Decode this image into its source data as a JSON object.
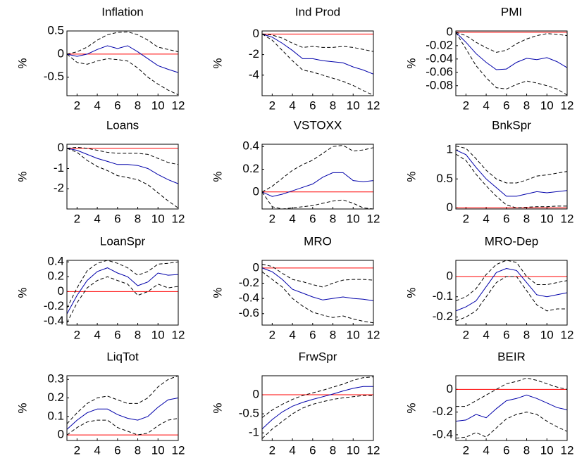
{
  "chart_data": [
    {
      "type": "line",
      "title": "Inflation",
      "ylabel": "%",
      "x": [
        1,
        2,
        3,
        4,
        5,
        6,
        7,
        8,
        9,
        10,
        11,
        12
      ],
      "xlim": [
        1,
        12
      ],
      "xticks": [
        2,
        4,
        6,
        8,
        10,
        12
      ],
      "ylim": [
        -0.9,
        0.5
      ],
      "yticks": [
        -0.5,
        0,
        0.5
      ],
      "hline": {
        "value": 0,
        "color": "#ff0000"
      },
      "series": [
        {
          "color": "#0000aa",
          "dashed": false,
          "values": [
            0,
            -0.05,
            0,
            0.1,
            0.18,
            0.12,
            0.18,
            0.05,
            -0.1,
            -0.25,
            -0.33,
            -0.4
          ]
        },
        {
          "color": "#000000",
          "dashed": true,
          "values": [
            0,
            0.05,
            0.15,
            0.3,
            0.42,
            0.47,
            0.48,
            0.42,
            0.3,
            0.15,
            0.1,
            0.05
          ]
        },
        {
          "color": "#000000",
          "dashed": true,
          "values": [
            0,
            -0.18,
            -0.22,
            -0.15,
            -0.1,
            -0.12,
            -0.15,
            -0.3,
            -0.5,
            -0.65,
            -0.78,
            -0.88
          ]
        }
      ]
    },
    {
      "type": "line",
      "title": "Ind Prod",
      "ylabel": "%",
      "x": [
        1,
        2,
        3,
        4,
        5,
        6,
        7,
        8,
        9,
        10,
        11,
        12
      ],
      "xlim": [
        1,
        12
      ],
      "xticks": [
        2,
        4,
        6,
        8,
        10,
        12
      ],
      "ylim": [
        -6,
        0.3
      ],
      "yticks": [
        -4,
        -2,
        0
      ],
      "hline": {
        "value": 0,
        "color": "#ff0000"
      },
      "series": [
        {
          "color": "#0000aa",
          "dashed": false,
          "values": [
            0,
            -0.3,
            -0.9,
            -1.6,
            -2.4,
            -2.4,
            -2.6,
            -2.7,
            -2.8,
            -3.2,
            -3.5,
            -3.9
          ]
        },
        {
          "color": "#000000",
          "dashed": true,
          "values": [
            0,
            -0.1,
            -0.4,
            -0.9,
            -1.3,
            -1.2,
            -1.3,
            -1.3,
            -1.2,
            -1.3,
            -1.5,
            -1.7
          ]
        },
        {
          "color": "#000000",
          "dashed": true,
          "values": [
            0,
            -0.6,
            -1.6,
            -2.6,
            -3.5,
            -3.7,
            -4.0,
            -4.3,
            -4.6,
            -5.0,
            -5.5,
            -5.95
          ]
        }
      ]
    },
    {
      "type": "line",
      "title": "PMI",
      "ylabel": "%",
      "x": [
        1,
        2,
        3,
        4,
        5,
        6,
        7,
        8,
        9,
        10,
        11,
        12
      ],
      "xlim": [
        1,
        12
      ],
      "xticks": [
        2,
        4,
        6,
        8,
        10,
        12
      ],
      "ylim": [
        -0.095,
        0.002
      ],
      "yticks": [
        -0.08,
        -0.06,
        -0.04,
        -0.02,
        0
      ],
      "hline": {
        "value": 0,
        "color": "#ff0000"
      },
      "series": [
        {
          "color": "#0000aa",
          "dashed": false,
          "values": [
            0,
            -0.015,
            -0.032,
            -0.045,
            -0.056,
            -0.055,
            -0.045,
            -0.039,
            -0.041,
            -0.038,
            -0.044,
            -0.053
          ]
        },
        {
          "color": "#000000",
          "dashed": true,
          "values": [
            0,
            -0.005,
            -0.015,
            -0.023,
            -0.03,
            -0.027,
            -0.017,
            -0.01,
            -0.005,
            -0.002,
            -0.003,
            -0.005
          ]
        },
        {
          "color": "#000000",
          "dashed": true,
          "values": [
            0,
            -0.025,
            -0.05,
            -0.068,
            -0.083,
            -0.085,
            -0.078,
            -0.073,
            -0.076,
            -0.08,
            -0.085,
            -0.094
          ]
        }
      ]
    },
    {
      "type": "line",
      "title": "Loans",
      "ylabel": "%",
      "x": [
        1,
        2,
        3,
        4,
        5,
        6,
        7,
        8,
        9,
        10,
        11,
        12
      ],
      "xlim": [
        1,
        12
      ],
      "xticks": [
        2,
        4,
        6,
        8,
        10,
        12
      ],
      "ylim": [
        -3,
        0.2
      ],
      "yticks": [
        -2,
        -1,
        0
      ],
      "hline": {
        "value": 0,
        "color": "#ff0000"
      },
      "series": [
        {
          "color": "#0000aa",
          "dashed": false,
          "values": [
            0,
            -0.1,
            -0.3,
            -0.5,
            -0.65,
            -0.8,
            -0.8,
            -0.85,
            -1.0,
            -1.3,
            -1.55,
            -1.75
          ]
        },
        {
          "color": "#000000",
          "dashed": true,
          "values": [
            0,
            0.05,
            0,
            -0.1,
            -0.2,
            -0.25,
            -0.25,
            -0.25,
            -0.3,
            -0.5,
            -0.7,
            -0.8
          ]
        },
        {
          "color": "#000000",
          "dashed": true,
          "values": [
            0,
            -0.2,
            -0.6,
            -0.9,
            -1.1,
            -1.35,
            -1.45,
            -1.55,
            -1.8,
            -2.2,
            -2.6,
            -2.95
          ]
        }
      ]
    },
    {
      "type": "line",
      "title": "VSTOXX",
      "ylabel": "%",
      "x": [
        1,
        2,
        3,
        4,
        5,
        6,
        7,
        8,
        9,
        10,
        11,
        12
      ],
      "xlim": [
        1,
        12
      ],
      "xticks": [
        2,
        4,
        6,
        8,
        10,
        12
      ],
      "ylim": [
        -0.15,
        0.42
      ],
      "yticks": [
        0,
        0.2,
        0.4
      ],
      "hline": {
        "value": 0,
        "color": "#ff0000"
      },
      "series": [
        {
          "color": "#0000aa",
          "dashed": false,
          "values": [
            0,
            -0.04,
            -0.02,
            0.01,
            0.04,
            0.07,
            0.13,
            0.17,
            0.17,
            0.1,
            0.09,
            0.1
          ]
        },
        {
          "color": "#000000",
          "dashed": true,
          "values": [
            0,
            0.05,
            0.12,
            0.19,
            0.24,
            0.28,
            0.34,
            0.4,
            0.41,
            0.36,
            0.37,
            0.39
          ]
        },
        {
          "color": "#000000",
          "dashed": true,
          "values": [
            0,
            -0.13,
            -0.15,
            -0.14,
            -0.13,
            -0.12,
            -0.1,
            -0.08,
            -0.07,
            -0.1,
            -0.14,
            -0.15
          ]
        }
      ]
    },
    {
      "type": "line",
      "title": "BnkSpr",
      "ylabel": "%",
      "x": [
        1,
        2,
        3,
        4,
        5,
        6,
        7,
        8,
        9,
        10,
        11,
        12
      ],
      "xlim": [
        1,
        12
      ],
      "xticks": [
        2,
        4,
        6,
        8,
        10,
        12
      ],
      "ylim": [
        -0.02,
        1.1
      ],
      "yticks": [
        0,
        0.5,
        1
      ],
      "hline": {
        "value": 0,
        "color": "#ff0000"
      },
      "series": [
        {
          "color": "#0000aa",
          "dashed": false,
          "values": [
            1.0,
            0.92,
            0.7,
            0.5,
            0.35,
            0.2,
            0.2,
            0.24,
            0.28,
            0.26,
            0.28,
            0.3
          ]
        },
        {
          "color": "#000000",
          "dashed": true,
          "values": [
            1.07,
            1.03,
            0.85,
            0.65,
            0.5,
            0.43,
            0.43,
            0.48,
            0.55,
            0.57,
            0.6,
            0.63
          ]
        },
        {
          "color": "#000000",
          "dashed": true,
          "values": [
            0.93,
            0.82,
            0.58,
            0.38,
            0.2,
            0.05,
            0.0,
            0.01,
            0.02,
            0.02,
            0.03,
            0.03
          ]
        }
      ]
    },
    {
      "type": "line",
      "title": "LoanSpr",
      "ylabel": "%",
      "x": [
        1,
        2,
        3,
        4,
        5,
        6,
        7,
        8,
        9,
        10,
        11,
        12
      ],
      "xlim": [
        1,
        12
      ],
      "xticks": [
        2,
        4,
        6,
        8,
        10,
        12
      ],
      "ylim": [
        -0.45,
        0.42
      ],
      "yticks": [
        -0.4,
        -0.2,
        0,
        0.2,
        0.4
      ],
      "hline": {
        "value": 0,
        "color": "#ff0000"
      },
      "series": [
        {
          "color": "#0000aa",
          "dashed": false,
          "values": [
            -0.3,
            -0.05,
            0.15,
            0.27,
            0.32,
            0.25,
            0.2,
            0.08,
            0.13,
            0.25,
            0.22,
            0.23
          ]
        },
        {
          "color": "#000000",
          "dashed": true,
          "values": [
            -0.22,
            0.05,
            0.28,
            0.38,
            0.42,
            0.38,
            0.32,
            0.22,
            0.27,
            0.37,
            0.38,
            0.4
          ]
        },
        {
          "color": "#000000",
          "dashed": true,
          "values": [
            -0.42,
            -0.15,
            0.05,
            0.15,
            0.2,
            0.15,
            0.1,
            -0.05,
            0.0,
            0.1,
            0.05,
            0.07
          ]
        }
      ]
    },
    {
      "type": "line",
      "title": "MRO",
      "ylabel": "%",
      "x": [
        1,
        2,
        3,
        4,
        5,
        6,
        7,
        8,
        9,
        10,
        11,
        12
      ],
      "xlim": [
        1,
        12
      ],
      "xticks": [
        2,
        4,
        6,
        8,
        10,
        12
      ],
      "ylim": [
        -0.75,
        0.1
      ],
      "yticks": [
        -0.6,
        -0.4,
        -0.2,
        0
      ],
      "hline": {
        "value": 0,
        "color": "#ff0000"
      },
      "series": [
        {
          "color": "#0000aa",
          "dashed": false,
          "values": [
            0,
            -0.05,
            -0.15,
            -0.28,
            -0.33,
            -0.38,
            -0.42,
            -0.4,
            -0.38,
            -0.4,
            -0.41,
            -0.43
          ]
        },
        {
          "color": "#000000",
          "dashed": true,
          "values": [
            0.05,
            0.02,
            -0.07,
            -0.15,
            -0.18,
            -0.22,
            -0.25,
            -0.2,
            -0.16,
            -0.15,
            -0.15,
            -0.16
          ]
        },
        {
          "color": "#000000",
          "dashed": true,
          "values": [
            -0.05,
            -0.15,
            -0.25,
            -0.4,
            -0.5,
            -0.58,
            -0.62,
            -0.65,
            -0.63,
            -0.67,
            -0.7,
            -0.72
          ]
        }
      ]
    },
    {
      "type": "line",
      "title": "MRO-Dep",
      "ylabel": "%",
      "x": [
        1,
        2,
        3,
        4,
        5,
        6,
        7,
        8,
        9,
        10,
        11,
        12
      ],
      "xlim": [
        1,
        12
      ],
      "xticks": [
        2,
        4,
        6,
        8,
        10,
        12
      ],
      "ylim": [
        -0.24,
        0.08
      ],
      "yticks": [
        -0.2,
        -0.1,
        0
      ],
      "hline": {
        "value": 0,
        "color": "#ff0000"
      },
      "series": [
        {
          "color": "#0000aa",
          "dashed": false,
          "values": [
            -0.17,
            -0.15,
            -0.12,
            -0.05,
            0.02,
            0.04,
            0.03,
            -0.03,
            -0.09,
            -0.1,
            -0.09,
            -0.08
          ]
        },
        {
          "color": "#000000",
          "dashed": true,
          "values": [
            -0.12,
            -0.1,
            -0.06,
            0.01,
            0.06,
            0.08,
            0.07,
            0.0,
            -0.04,
            -0.04,
            -0.03,
            -0.02
          ]
        },
        {
          "color": "#000000",
          "dashed": true,
          "values": [
            -0.22,
            -0.2,
            -0.17,
            -0.1,
            -0.03,
            0.0,
            0.0,
            -0.07,
            -0.14,
            -0.17,
            -0.16,
            -0.16
          ]
        }
      ]
    },
    {
      "type": "line",
      "title": "LiqTot",
      "ylabel": "%",
      "x": [
        1,
        2,
        3,
        4,
        5,
        6,
        7,
        8,
        9,
        10,
        11,
        12
      ],
      "xlim": [
        1,
        12
      ],
      "xticks": [
        2,
        4,
        6,
        8,
        10,
        12
      ],
      "ylim": [
        -0.03,
        0.32
      ],
      "yticks": [
        0,
        0.1,
        0.2,
        0.3
      ],
      "hline": {
        "value": 0,
        "color": "#ff0000"
      },
      "series": [
        {
          "color": "#0000aa",
          "dashed": false,
          "values": [
            0.03,
            0.08,
            0.12,
            0.14,
            0.14,
            0.11,
            0.09,
            0.08,
            0.1,
            0.15,
            0.19,
            0.2
          ]
        },
        {
          "color": "#000000",
          "dashed": true,
          "values": [
            0.06,
            0.12,
            0.17,
            0.2,
            0.21,
            0.19,
            0.17,
            0.17,
            0.2,
            0.26,
            0.3,
            0.32
          ]
        },
        {
          "color": "#000000",
          "dashed": true,
          "values": [
            0.0,
            0.04,
            0.07,
            0.08,
            0.08,
            0.04,
            0.02,
            0.0,
            0.01,
            0.05,
            0.08,
            0.09
          ]
        }
      ]
    },
    {
      "type": "line",
      "title": "FrwSpr",
      "ylabel": "%",
      "x": [
        1,
        2,
        3,
        4,
        5,
        6,
        7,
        8,
        9,
        10,
        11,
        12
      ],
      "xlim": [
        1,
        12
      ],
      "xticks": [
        2,
        4,
        6,
        8,
        10,
        12
      ],
      "ylim": [
        -1.2,
        0.5
      ],
      "yticks": [
        -1,
        -0.5,
        0
      ],
      "hline": {
        "value": 0,
        "color": "#ff0000"
      },
      "series": [
        {
          "color": "#0000aa",
          "dashed": false,
          "values": [
            -0.9,
            -0.65,
            -0.45,
            -0.3,
            -0.2,
            -0.12,
            -0.05,
            0.02,
            0.1,
            0.17,
            0.22,
            0.22
          ]
        },
        {
          "color": "#000000",
          "dashed": true,
          "values": [
            -0.6,
            -0.4,
            -0.25,
            -0.12,
            -0.02,
            0.05,
            0.12,
            0.2,
            0.28,
            0.38,
            0.45,
            0.47
          ]
        },
        {
          "color": "#000000",
          "dashed": true,
          "values": [
            -1.15,
            -0.9,
            -0.7,
            -0.5,
            -0.35,
            -0.25,
            -0.18,
            -0.12,
            -0.08,
            -0.05,
            -0.02,
            -0.02
          ]
        }
      ]
    },
    {
      "type": "line",
      "title": "BEIR",
      "ylabel": "%",
      "x": [
        1,
        2,
        3,
        4,
        5,
        6,
        7,
        8,
        9,
        10,
        11,
        12
      ],
      "xlim": [
        1,
        12
      ],
      "xticks": [
        2,
        4,
        6,
        8,
        10,
        12
      ],
      "ylim": [
        -0.45,
        0.12
      ],
      "yticks": [
        -0.4,
        -0.2,
        0
      ],
      "hline": {
        "value": 0,
        "color": "#ff0000"
      },
      "series": [
        {
          "color": "#0000aa",
          "dashed": false,
          "values": [
            -0.28,
            -0.27,
            -0.22,
            -0.25,
            -0.17,
            -0.1,
            -0.08,
            -0.05,
            -0.08,
            -0.12,
            -0.16,
            -0.18
          ]
        },
        {
          "color": "#000000",
          "dashed": true,
          "values": [
            -0.15,
            -0.15,
            -0.1,
            -0.05,
            0.0,
            0.05,
            0.07,
            0.1,
            0.08,
            0.05,
            0.02,
            0.0
          ]
        },
        {
          "color": "#000000",
          "dashed": true,
          "values": [
            -0.43,
            -0.42,
            -0.38,
            -0.42,
            -0.34,
            -0.26,
            -0.22,
            -0.2,
            -0.22,
            -0.28,
            -0.33,
            -0.37
          ]
        }
      ]
    }
  ]
}
